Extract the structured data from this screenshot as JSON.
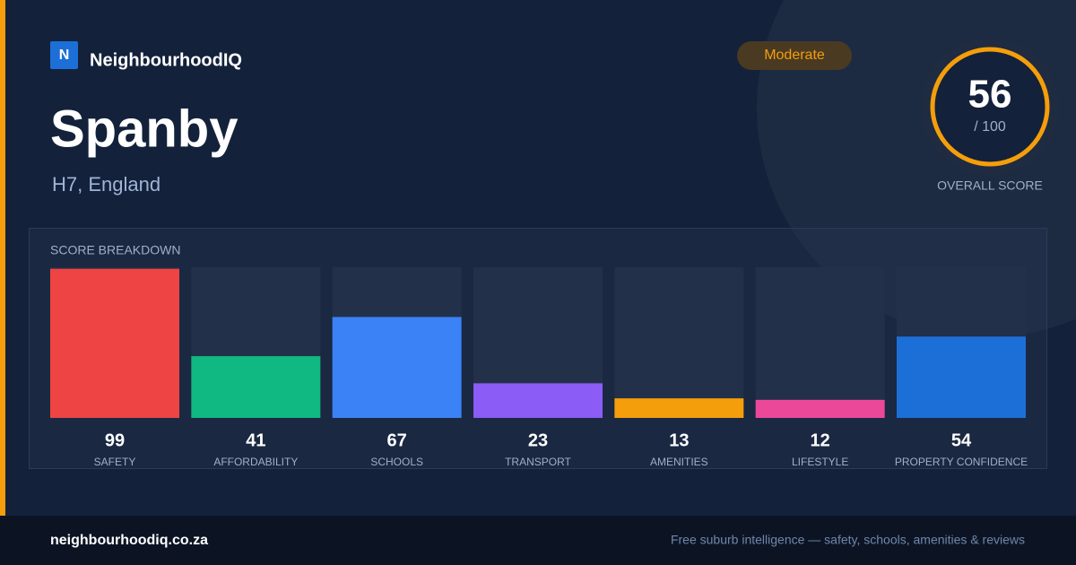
{
  "brand": {
    "logo": "N",
    "name": "NeighbourhoodIQ"
  },
  "badge": "Moderate",
  "title": "Spanby",
  "location": "H7, England",
  "score": {
    "value": 56,
    "max_label": "/ 100",
    "label": "OVERALL SCORE"
  },
  "chart_data": {
    "type": "bar",
    "title": "SCORE BREAKDOWN",
    "categories": [
      "SAFETY",
      "AFFORDABILITY",
      "SCHOOLS",
      "TRANSPORT",
      "AMENITIES",
      "LIFESTYLE",
      "PROPERTY CONFIDENCE"
    ],
    "values": [
      99,
      41,
      67,
      23,
      13,
      12,
      54
    ],
    "colors": [
      "#ef4444",
      "#10b981",
      "#3b82f6",
      "#8b5cf6",
      "#f59e0b",
      "#ec4899",
      "#1d6fd8"
    ],
    "ylim": [
      0,
      100
    ]
  },
  "footer": {
    "domain": "neighbourhoodiq.co.za",
    "tagline": "Free suburb intelligence — safety, schools, amenities & reviews"
  }
}
